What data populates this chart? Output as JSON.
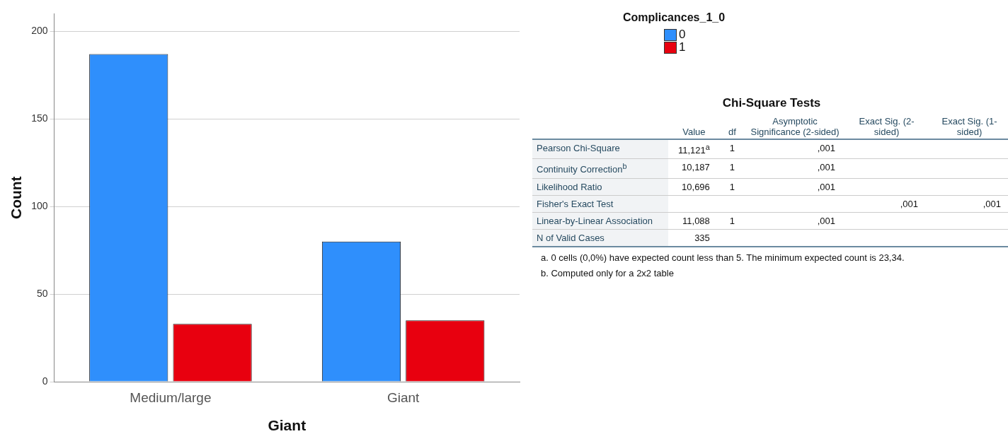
{
  "chart_data": [
    {
      "type": "bar",
      "categories": [
        "Medium/large",
        "Giant"
      ],
      "xlabel": "Giant",
      "ylabel": "Count",
      "legend_title": "Complicances_1_0",
      "legend": "top right",
      "grid": "y",
      "ylim": [
        0,
        210
      ],
      "yticks": [
        0,
        50,
        100,
        150,
        200
      ],
      "series": [
        {
          "name": "0",
          "color": "#2f8ffc",
          "values": [
            187,
            80
          ]
        },
        {
          "name": "1",
          "color": "#e8000f",
          "values": [
            33,
            35
          ]
        }
      ]
    },
    {
      "type": "other",
      "title": "Chi-Square Tests",
      "categories": [
        null,
        "Value",
        "df",
        "Asymptotic Significance (2-sided)",
        "Exact Sig. (2-sided)",
        "Exact Sig. (1-sided)"
      ],
      "y_categories": [
        "Pearson Chi-Square",
        "Continuity Correction$^{b}$",
        "Likelihood Ratio",
        "Fisher's Exact Test",
        "Linear-by-Linear Association",
        "N of Valid Cases"
      ],
      "cell_labels": [
        [
          "11,121$^{a}$",
          "1",
          ",001",
          null,
          null
        ],
        [
          "10,187",
          "1",
          ",001",
          null,
          null
        ],
        [
          "10,696",
          "1",
          ",001",
          null,
          null
        ],
        [
          null,
          null,
          null,
          ",001",
          ",001"
        ],
        [
          "11,088",
          "1",
          ",001",
          null,
          null
        ],
        [
          "335",
          null,
          null,
          null,
          null
        ]
      ],
      "annotations": [
        "a. 0 cells (0,0%) have expected count less than 5. The minimum expected count is 23,34.",
        "b. Computed only for a 2x2 table"
      ]
    }
  ]
}
